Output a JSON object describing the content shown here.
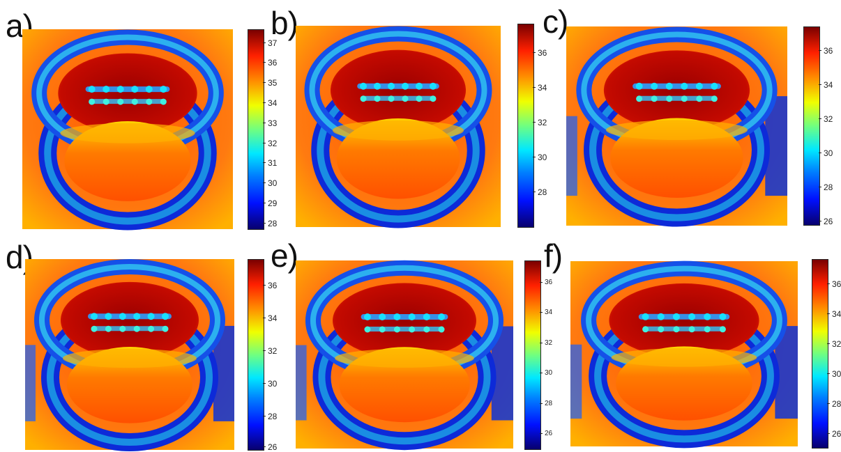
{
  "panels": [
    {
      "letter": "a)",
      "ticks": [
        "37",
        "36",
        "35",
        "34",
        "33",
        "32",
        "31",
        "30",
        "29",
        "28"
      ]
    },
    {
      "letter": "b)",
      "ticks": [
        "36",
        "34",
        "32",
        "30",
        "28"
      ]
    },
    {
      "letter": "c)",
      "ticks": [
        "36",
        "34",
        "32",
        "30",
        "28",
        "26"
      ]
    },
    {
      "letter": "d)",
      "ticks": [
        "36",
        "34",
        "32",
        "30",
        "28",
        "26"
      ]
    },
    {
      "letter": "e)",
      "ticks": [
        "36",
        "34",
        "32",
        "30",
        "28",
        "26"
      ]
    },
    {
      "letter": "f)",
      "ticks": [
        "36",
        "34",
        "32",
        "30",
        "28",
        "26"
      ]
    }
  ],
  "colormap": {
    "cold": "#08006e",
    "mid": "#f0ff00",
    "hot": "#7a0000",
    "skin": "#ff7a10",
    "mouth": "#c40a00",
    "retractor": "#1ea6e6"
  }
}
